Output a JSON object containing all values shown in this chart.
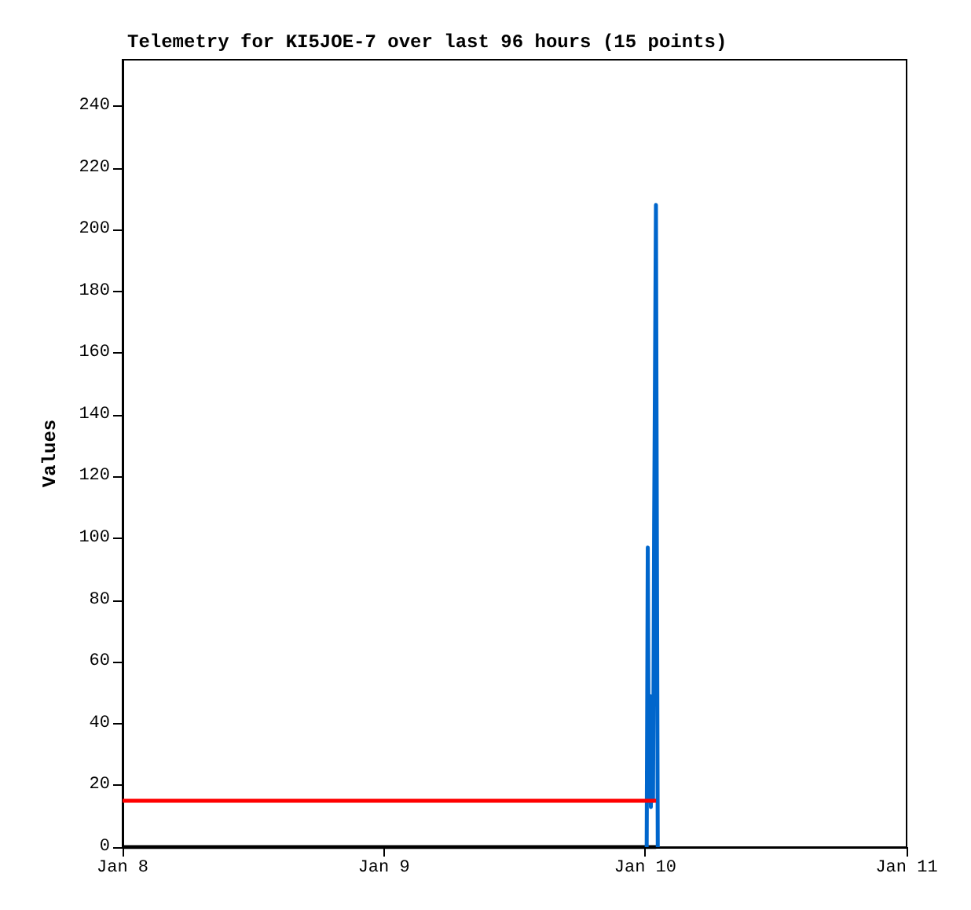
{
  "chart_data": {
    "type": "line",
    "title": "Telemetry for KI5JOE-7 over last 96 hours (15 points)",
    "ylabel": "Values",
    "xlim": [
      "--01-08",
      "--01-11"
    ],
    "xticks": [
      {
        "value": "--01-08",
        "label": "Jan 8"
      },
      {
        "value": "--01-09",
        "label": "Jan 9"
      },
      {
        "value": "--01-10",
        "label": "Jan 10"
      },
      {
        "value": "--01-11",
        "label": "Jan 11"
      }
    ],
    "ylim": [
      0,
      255
    ],
    "yticks": [
      0,
      20,
      40,
      60,
      80,
      100,
      120,
      140,
      160,
      180,
      200,
      220,
      240
    ],
    "grid": false,
    "marker": "none",
    "line_style": "solid",
    "series": [
      {
        "color": "#000000",
        "x": [
          "--01-08T00:00",
          "--01-10T01:00"
        ],
        "values": [
          0,
          0
        ]
      },
      {
        "color": "#0066cc",
        "x": [
          "--01-10T00:08",
          "--01-10T00:14",
          "--01-10T00:20",
          "--01-10T00:26",
          "--01-10T00:31",
          "--01-10T00:37",
          "--01-10T00:43",
          "--01-10T00:49",
          "--01-10T00:55",
          "--01-10T00:59",
          "--01-10T01:05",
          "--01-10T01:09"
        ],
        "values": [
          0,
          97,
          15,
          49,
          13,
          37,
          15,
          104,
          104,
          208,
          208,
          0
        ]
      },
      {
        "color": "#ff0000",
        "x": [
          "--01-08T00:00",
          "--01-10T01:00"
        ],
        "values": [
          15,
          15
        ]
      }
    ]
  }
}
